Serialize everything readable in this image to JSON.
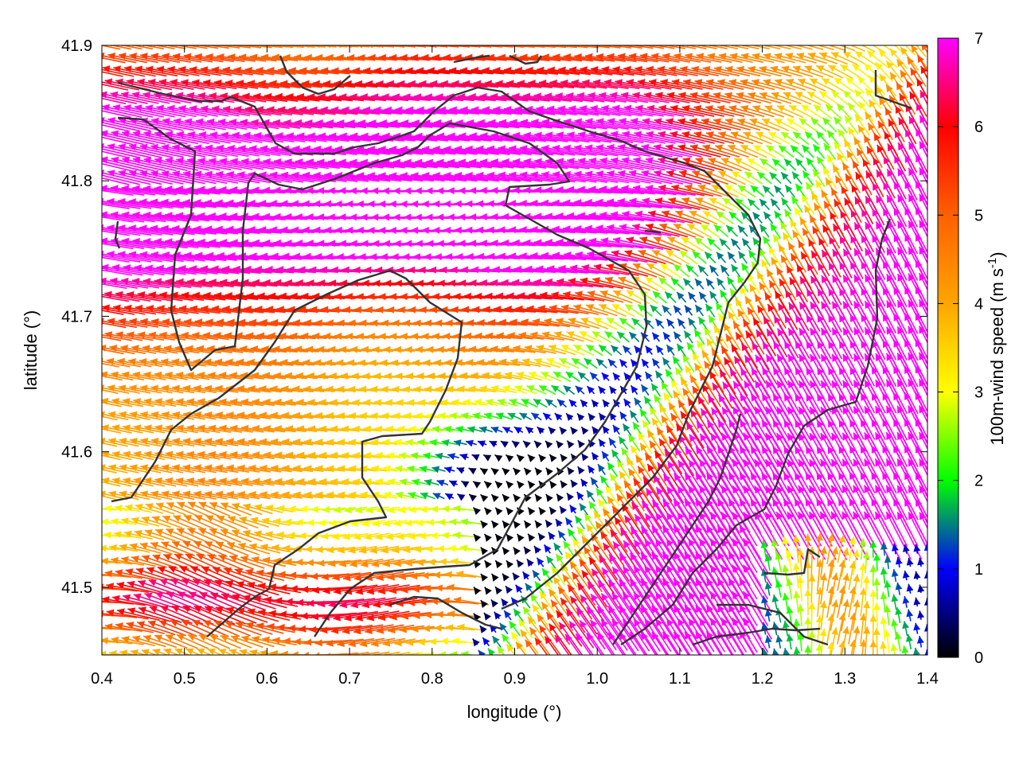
{
  "chart_data": {
    "type": "vector-field",
    "xlabel": "longitude (°)",
    "ylabel": "latitude (°)",
    "xlim": [
      0.4,
      1.4
    ],
    "ylim": [
      41.45,
      41.9
    ],
    "x_ticks": [
      "0.4",
      "0.5",
      "0.6",
      "0.7",
      "0.8",
      "0.9",
      "1.0",
      "1.1",
      "1.2",
      "1.3",
      "1.4"
    ],
    "y_ticks": [
      "41.5",
      "41.6",
      "41.7",
      "41.8",
      "41.9"
    ],
    "x_tick_values": [
      0.4,
      0.5,
      0.6,
      0.7,
      0.8,
      0.9,
      1.0,
      1.1,
      1.2,
      1.3,
      1.4
    ],
    "y_tick_values": [
      41.5,
      41.6,
      41.7,
      41.8,
      41.9
    ],
    "colorbar": {
      "label": "100m-wind speed (m s-1)",
      "label_main": "100m-wind speed (m s",
      "label_sup": "-1",
      "label_end": ")",
      "min": 0,
      "max": 7,
      "ticks": [
        "0",
        "1",
        "2",
        "3",
        "4",
        "5",
        "6",
        "7"
      ],
      "tick_values": [
        0,
        1,
        2,
        3,
        4,
        5,
        6,
        7
      ],
      "colormap": [
        [
          0,
          "#000000"
        ],
        [
          1,
          "#0000ff"
        ],
        [
          2,
          "#00ff00"
        ],
        [
          3,
          "#ffff00"
        ],
        [
          4,
          "#ffa500"
        ],
        [
          5,
          "#ff6000"
        ],
        [
          6,
          "#ff0000"
        ],
        [
          7,
          "#ff00ff"
        ]
      ]
    },
    "field": {
      "lon_range": [
        0.4,
        1.4
      ],
      "lat_range": [
        41.45,
        41.9
      ],
      "grid_nx": 102,
      "grid_ny": 46,
      "description": "arrows coloured by wind speed; strong westward flow (>6 m s-1) in the north, calm region (<1 m s-1) near 0.85-0.95°E 41.55-41.62°N, strong north-westward flow (>6 m s-1) in the south-east"
    },
    "grid": false,
    "coastline_color": "#333333"
  }
}
